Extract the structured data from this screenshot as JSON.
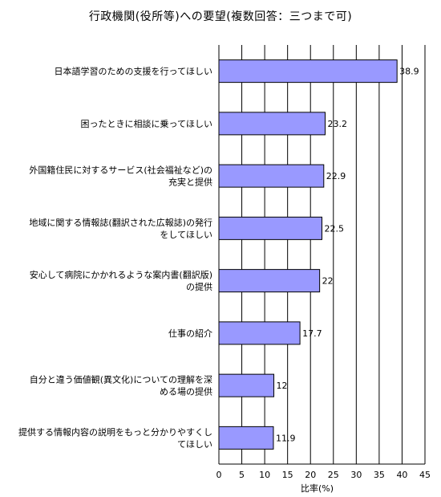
{
  "chart_data": {
    "type": "bar",
    "orientation": "horizontal",
    "title": "行政機関(役所等)への要望(複数回答：三つまで可)",
    "xlabel": "比率(%)",
    "xlim": [
      0,
      45
    ],
    "xticks": [
      0,
      5,
      10,
      15,
      20,
      25,
      30,
      35,
      40,
      45
    ],
    "grid": true,
    "bar_color": "#9999ff",
    "categories": [
      [
        "日本語学習のための支援を行ってほしい"
      ],
      [
        "困ったときに相談に乗ってほしい"
      ],
      [
        "外国籍住民に対するサービス(社会福祉など)の",
        "充実と提供"
      ],
      [
        "地域に関する情報誌(翻訳された広報誌)の発行",
        "をしてほしい"
      ],
      [
        "安心して病院にかかれるような案内書(翻訳版)",
        "の提供"
      ],
      [
        "仕事の紹介"
      ],
      [
        "自分と違う価値観(異文化)についての理解を深",
        "める場の提供"
      ],
      [
        "提供する情報内容の説明をもっと分かりやすくし",
        "てほしい"
      ]
    ],
    "values": [
      38.9,
      23.2,
      22.9,
      22.5,
      22,
      17.7,
      12,
      11.9
    ]
  }
}
